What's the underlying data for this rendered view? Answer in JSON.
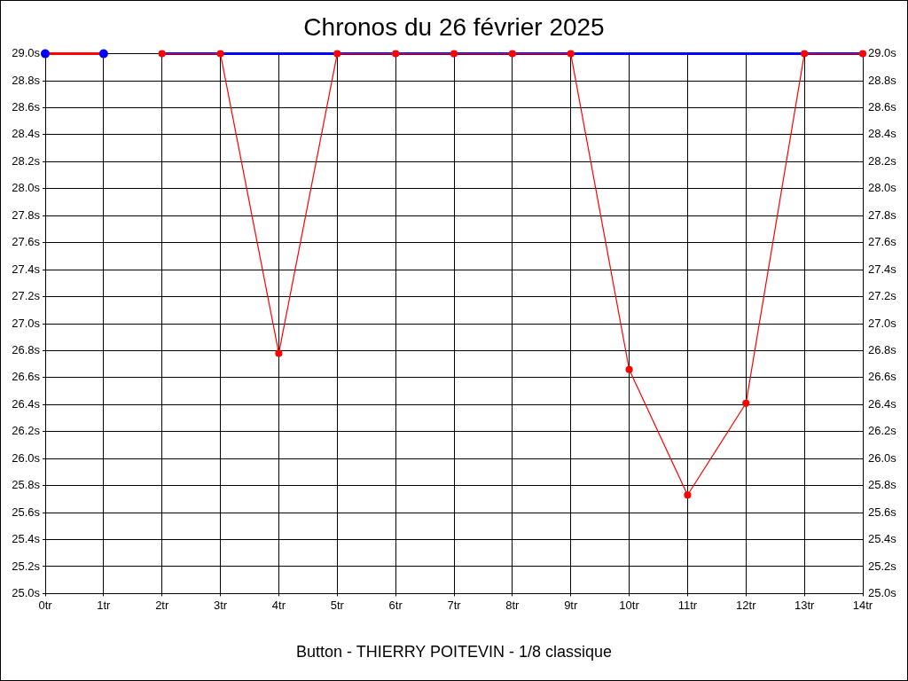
{
  "chart_data": {
    "type": "line",
    "title": "Chronos du 26 février 2025",
    "annotations": [
      "Button - THIERRY POITEVIN - 1/8 classique"
    ],
    "x": [
      0,
      1,
      2,
      3,
      4,
      5,
      6,
      7,
      8,
      9,
      10,
      11,
      12,
      13,
      14
    ],
    "series": [
      {
        "color": "#ff0000",
        "colors": [
          "#0000ff",
          "#0000ff",
          null,
          null,
          null,
          null,
          null,
          null,
          null,
          null,
          null,
          null,
          null,
          null,
          null
        ],
        "marker": "circle",
        "values": [
          29.0,
          29.0,
          null,
          null,
          null,
          null,
          null,
          null,
          null,
          null,
          null,
          null,
          null,
          null,
          null
        ]
      },
      {
        "color": "#0000ff",
        "marker": "none",
        "values": [
          null,
          null,
          29.0,
          29.0,
          29.0,
          29.0,
          29.0,
          29.0,
          29.0,
          29.0,
          29.0,
          29.0,
          29.0,
          29.0,
          29.0
        ]
      },
      {
        "color": "#ff0000",
        "marker": "circle",
        "values": [
          null,
          null,
          29.0,
          29.0,
          26.78,
          29.0,
          29.0,
          29.0,
          29.0,
          29.0,
          26.66,
          25.73,
          26.41,
          29.0,
          29.0
        ]
      }
    ],
    "xlim": [
      0,
      14
    ],
    "xticks": [
      {
        "value": 0,
        "label": "0tr"
      },
      {
        "value": 1,
        "label": "1tr"
      },
      {
        "value": 2,
        "label": "2tr"
      },
      {
        "value": 3,
        "label": "3tr"
      },
      {
        "value": 4,
        "label": "4tr"
      },
      {
        "value": 5,
        "label": "5tr"
      },
      {
        "value": 6,
        "label": "6tr"
      },
      {
        "value": 7,
        "label": "7tr"
      },
      {
        "value": 8,
        "label": "8tr"
      },
      {
        "value": 9,
        "label": "9tr"
      },
      {
        "value": 10,
        "label": "10tr"
      },
      {
        "value": 11,
        "label": "11tr"
      },
      {
        "value": 12,
        "label": "12tr"
      },
      {
        "value": 13,
        "label": "13tr"
      },
      {
        "value": 14,
        "label": "14tr"
      }
    ],
    "ylim": [
      25.0,
      29.0
    ],
    "yticks": [
      {
        "value": 25.0,
        "label": "25.0s"
      },
      {
        "value": 25.2,
        "label": "25.2s"
      },
      {
        "value": 25.4,
        "label": "25.4s"
      },
      {
        "value": 25.6,
        "label": "25.6s"
      },
      {
        "value": 25.8,
        "label": "25.8s"
      },
      {
        "value": 26.0,
        "label": "26.0s"
      },
      {
        "value": 26.2,
        "label": "26.2s"
      },
      {
        "value": 26.4,
        "label": "26.4s"
      },
      {
        "value": 26.6,
        "label": "26.6s"
      },
      {
        "value": 26.8,
        "label": "26.8s"
      },
      {
        "value": 27.0,
        "label": "27.0s"
      },
      {
        "value": 27.2,
        "label": "27.2s"
      },
      {
        "value": 27.4,
        "label": "27.4s"
      },
      {
        "value": 27.6,
        "label": "27.6s"
      },
      {
        "value": 27.8,
        "label": "27.8s"
      },
      {
        "value": 28.0,
        "label": "28.0s"
      },
      {
        "value": 28.2,
        "label": "28.2s"
      },
      {
        "value": 28.4,
        "label": "28.4s"
      },
      {
        "value": 28.6,
        "label": "28.6s"
      },
      {
        "value": 28.8,
        "label": "28.8s"
      },
      {
        "value": 29.0,
        "label": "29.0s"
      }
    ],
    "y2lim": [
      25.0,
      29.0
    ],
    "y2ticks": [
      {
        "value": 25.0,
        "label": "25.0s"
      },
      {
        "value": 25.2,
        "label": "25.2s"
      },
      {
        "value": 25.4,
        "label": "25.4s"
      },
      {
        "value": 25.6,
        "label": "25.6s"
      },
      {
        "value": 25.8,
        "label": "25.8s"
      },
      {
        "value": 26.0,
        "label": "26.0s"
      },
      {
        "value": 26.2,
        "label": "26.2s"
      },
      {
        "value": 26.4,
        "label": "26.4s"
      },
      {
        "value": 26.6,
        "label": "26.6s"
      },
      {
        "value": 26.8,
        "label": "26.8s"
      },
      {
        "value": 27.0,
        "label": "27.0s"
      },
      {
        "value": 27.2,
        "label": "27.2s"
      },
      {
        "value": 27.4,
        "label": "27.4s"
      },
      {
        "value": 27.6,
        "label": "27.6s"
      },
      {
        "value": 27.8,
        "label": "27.8s"
      },
      {
        "value": 28.0,
        "label": "28.0s"
      },
      {
        "value": 28.2,
        "label": "28.2s"
      },
      {
        "value": 28.4,
        "label": "28.4s"
      },
      {
        "value": 28.6,
        "label": "28.6s"
      },
      {
        "value": 28.8,
        "label": "28.8s"
      },
      {
        "value": 29.0,
        "label": "29.0s"
      }
    ],
    "grid": true,
    "legend": false
  }
}
